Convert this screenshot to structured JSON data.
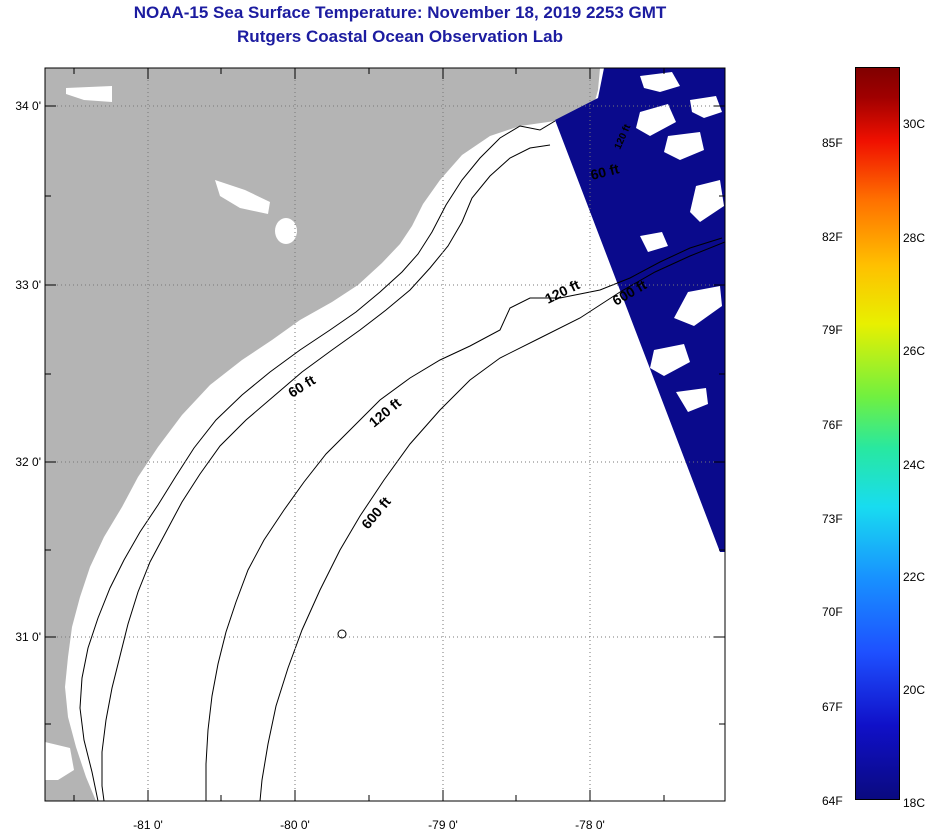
{
  "title": {
    "line1": "NOAA-15 Sea Surface Temperature:  November 18, 2019 2253 GMT",
    "line2": "Rutgers Coastal Ocean Observation Lab"
  },
  "axes": {
    "longitude_labels": [
      "-81 0'",
      "-80 0'",
      "-79 0'",
      "-78 0'"
    ],
    "latitude_labels": [
      "34 0'",
      "33 0'",
      "32 0'",
      "31 0'"
    ]
  },
  "contours": {
    "labels": [
      "60 ft",
      "120 ft",
      "600 ft",
      "120 ft",
      "600 ft",
      "60 ft",
      "120 ft"
    ]
  },
  "colorbar": {
    "fahrenheit": [
      "85F",
      "82F",
      "79F",
      "76F",
      "73F",
      "70F",
      "67F",
      "64F"
    ],
    "celsius": [
      "30C",
      "28C",
      "26C",
      "24C",
      "22C",
      "20C",
      "18C"
    ]
  },
  "colors": {
    "land": "#b4b4b4",
    "sst_cold": "#0a0a8c",
    "title": "#1c1ca0"
  }
}
